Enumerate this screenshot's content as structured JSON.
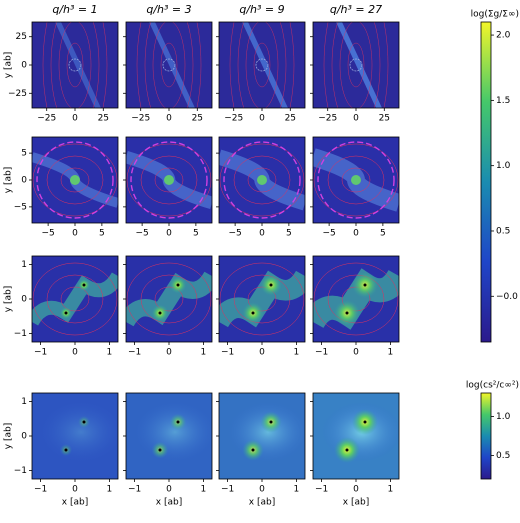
{
  "chart_data": [
    {
      "type": "heatmap",
      "titles": [
        "q/h³ = 1",
        "q/h³ = 3",
        "q/h³ = 9",
        "q/h³ = 27"
      ],
      "ylabel": "y [ab]",
      "xlim": [
        -38,
        38
      ],
      "ylim": [
        -38,
        38
      ],
      "xticks": [
        {
          "value": -25,
          "label": "−25"
        },
        0,
        25
      ],
      "yticks": [
        {
          "value": -25,
          "label": "−25"
        },
        0,
        25
      ],
      "colorbar": {
        "label": "log(Σg/Σ∞)",
        "lim": [
          -0.35,
          2.1
        ],
        "ticks": [
          {
            "value": -0.0,
            "label": "−0.0"
          },
          0.5,
          {
            "value": 1.0,
            "label": "1.0"
          },
          1.5,
          {
            "value": 2.0,
            "label": "2.0"
          }
        ]
      }
    },
    {
      "type": "heatmap",
      "ylabel": "y [ab]",
      "xlim": [
        -8,
        8
      ],
      "ylim": [
        -8,
        8
      ],
      "xticks": [
        {
          "value": -5,
          "label": "−5"
        },
        0,
        5
      ],
      "yticks": [
        {
          "value": -5,
          "label": "−5"
        },
        0,
        5
      ]
    },
    {
      "type": "heatmap",
      "ylabel": "y [ab]",
      "xlim": [
        -1.25,
        1.25
      ],
      "ylim": [
        -1.25,
        1.25
      ],
      "xticks": [
        {
          "value": -1,
          "label": "−1"
        },
        0,
        1
      ],
      "yticks": [
        {
          "value": -1,
          "label": "−1"
        },
        0,
        1
      ]
    },
    {
      "type": "heatmap",
      "ylabel": "y [ab]",
      "xlabel": "x [ab]",
      "xlim": [
        -1.25,
        1.25
      ],
      "ylim": [
        -1.25,
        1.25
      ],
      "xticks": [
        {
          "value": -1,
          "label": "−1"
        },
        0,
        1
      ],
      "yticks": [
        {
          "value": -1,
          "label": "−1"
        },
        0,
        1
      ],
      "colorbar": {
        "label": "log(cs²/c∞²)",
        "lim": [
          0.2,
          1.3
        ],
        "ticks": [
          0.5,
          {
            "value": 1.0,
            "label": "1.0"
          }
        ]
      }
    }
  ]
}
